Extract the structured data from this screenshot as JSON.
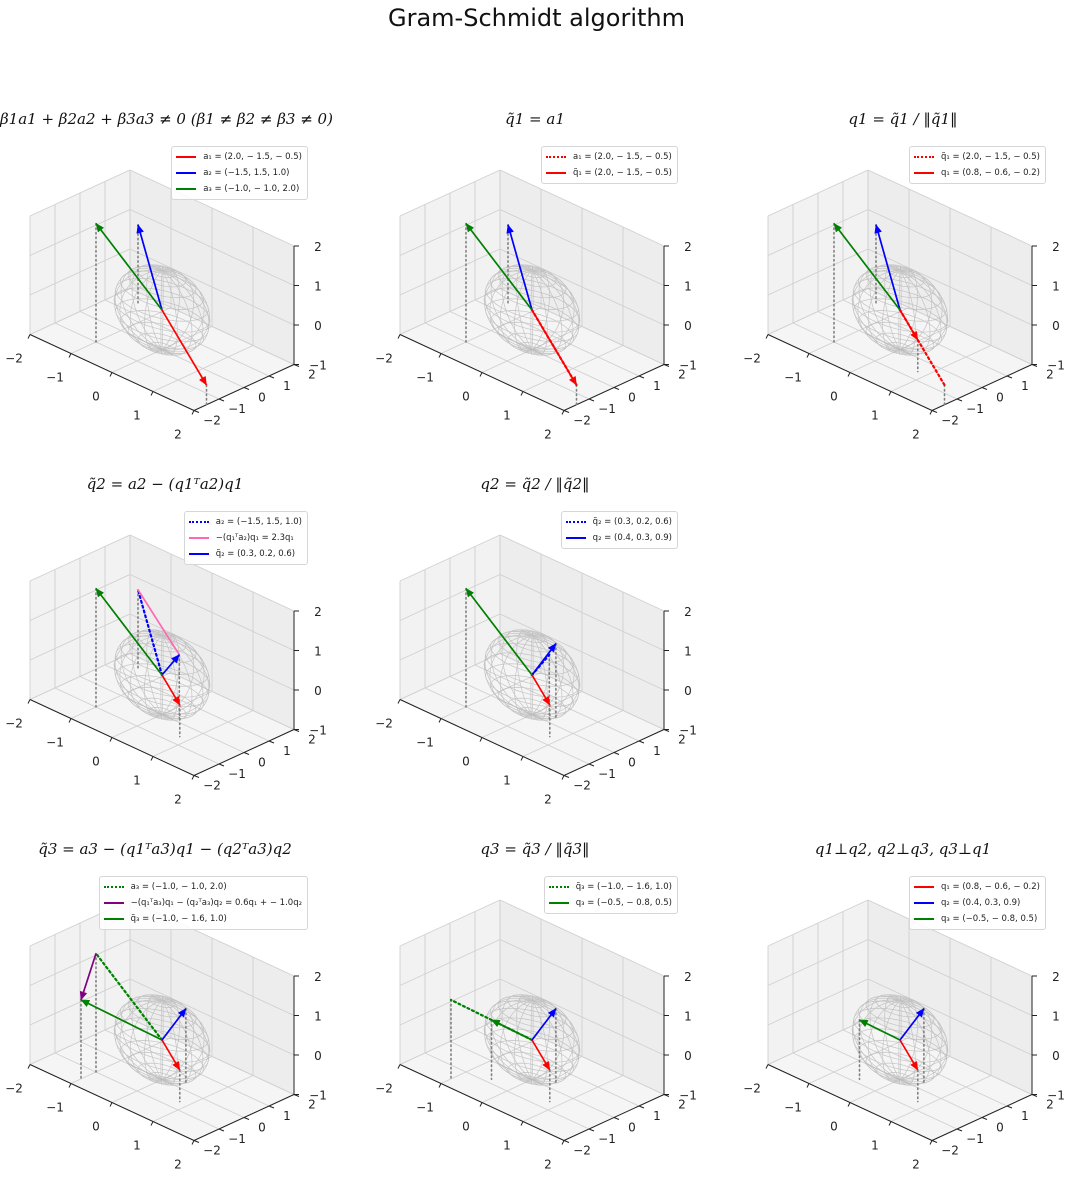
{
  "figure": {
    "title": "Gram-Schmidt algorithm"
  },
  "colors": {
    "red": "#ff0000",
    "blue": "#0000ff",
    "green": "#008000",
    "pink": "#ff69b4",
    "purple": "#800080",
    "gray": "#808080",
    "sphere": "#b0b0b0"
  },
  "chart_data": [
    {
      "type": "3d-vector",
      "title": "β1a1 + β2a2 + β3a3 ≠ 0 (β1 ≠ β2 ≠ β3 ≠ 0)",
      "xlim": [
        -2,
        2
      ],
      "ylim": [
        -2,
        2
      ],
      "zlim": [
        -1,
        2
      ],
      "xticks": [
        -2,
        -1,
        0,
        1,
        2
      ],
      "yticks": [
        -2,
        -1,
        0,
        1,
        2
      ],
      "zticks": [
        -1,
        0,
        1,
        2
      ],
      "legend_loc": "top-right",
      "vectors": [
        {
          "label": "a₁ = (2.0, − 1.5, − 0.5)",
          "from": [
            0,
            0,
            0
          ],
          "to": [
            2.0,
            -1.5,
            -0.5
          ],
          "color": "red",
          "style": "solid",
          "arrow": true
        },
        {
          "label": "a₂ = (−1.5, 1.5, 1.0)",
          "from": [
            0,
            0,
            0
          ],
          "to": [
            -1.5,
            1.5,
            1.0
          ],
          "color": "blue",
          "style": "solid",
          "arrow": true
        },
        {
          "label": "a₃ = (−1.0, − 1.0, 2.0)",
          "from": [
            0,
            0,
            0
          ],
          "to": [
            -1.0,
            -1.0,
            2.0
          ],
          "color": "green",
          "style": "solid",
          "arrow": true
        }
      ]
    },
    {
      "type": "3d-vector",
      "title": "q̃1 = a1",
      "xlim": [
        -2,
        2
      ],
      "ylim": [
        -2,
        2
      ],
      "zlim": [
        -1,
        2
      ],
      "xticks": [
        -2,
        -1,
        0,
        1,
        2
      ],
      "yticks": [
        -2,
        -1,
        0,
        1,
        2
      ],
      "zticks": [
        -1,
        0,
        1,
        2
      ],
      "legend_loc": "top-right",
      "vectors": [
        {
          "label": "a₁ = (2.0, − 1.5, − 0.5)",
          "from": [
            0,
            0,
            0
          ],
          "to": [
            2.0,
            -1.5,
            -0.5
          ],
          "color": "red",
          "style": "dotted",
          "arrow": false
        },
        {
          "label": "q̃₁ = (2.0, − 1.5, − 0.5)",
          "from": [
            0,
            0,
            0
          ],
          "to": [
            2.0,
            -1.5,
            -0.5
          ],
          "color": "red",
          "style": "solid",
          "arrow": true
        },
        {
          "label": null,
          "from": [
            0,
            0,
            0
          ],
          "to": [
            -1.5,
            1.5,
            1.0
          ],
          "color": "blue",
          "style": "solid",
          "arrow": true
        },
        {
          "label": null,
          "from": [
            0,
            0,
            0
          ],
          "to": [
            -1.0,
            -1.0,
            2.0
          ],
          "color": "green",
          "style": "solid",
          "arrow": true
        }
      ]
    },
    {
      "type": "3d-vector",
      "title": "q1 = q̃1 / ‖q̃1‖",
      "xlim": [
        -2,
        2
      ],
      "ylim": [
        -2,
        2
      ],
      "zlim": [
        -1,
        2
      ],
      "xticks": [
        -2,
        -1,
        0,
        1,
        2
      ],
      "yticks": [
        -2,
        -1,
        0,
        1,
        2
      ],
      "zticks": [
        -1,
        0,
        1,
        2
      ],
      "legend_loc": "top-right",
      "vectors": [
        {
          "label": "q̃₁ = (2.0, − 1.5, − 0.5)",
          "from": [
            0,
            0,
            0
          ],
          "to": [
            2.0,
            -1.5,
            -0.5
          ],
          "color": "red",
          "style": "dotted",
          "arrow": false
        },
        {
          "label": "q₁ = (0.8, − 0.6, − 0.2)",
          "from": [
            0,
            0,
            0
          ],
          "to": [
            0.8,
            -0.6,
            -0.2
          ],
          "color": "red",
          "style": "solid",
          "arrow": true
        },
        {
          "label": null,
          "from": [
            0,
            0,
            0
          ],
          "to": [
            -1.5,
            1.5,
            1.0
          ],
          "color": "blue",
          "style": "solid",
          "arrow": true
        },
        {
          "label": null,
          "from": [
            0,
            0,
            0
          ],
          "to": [
            -1.0,
            -1.0,
            2.0
          ],
          "color": "green",
          "style": "solid",
          "arrow": true
        }
      ]
    },
    {
      "type": "3d-vector",
      "title": "q̃2 = a2 − (q1ᵀa2)q1",
      "xlim": [
        -2,
        2
      ],
      "ylim": [
        -2,
        2
      ],
      "zlim": [
        -1,
        2
      ],
      "xticks": [
        -2,
        -1,
        0,
        1,
        2
      ],
      "yticks": [
        -2,
        -1,
        0,
        1,
        2
      ],
      "zticks": [
        -1,
        0,
        1,
        2
      ],
      "legend_loc": "top-right",
      "vectors": [
        {
          "label": "a₂ = (−1.5, 1.5, 1.0)",
          "from": [
            0,
            0,
            0
          ],
          "to": [
            -1.5,
            1.5,
            1.0
          ],
          "color": "blue",
          "style": "dotted",
          "arrow": false
        },
        {
          "label": "−(q₁ᵀa₂)q₁ = 2.3q₁",
          "from": [
            -1.5,
            1.5,
            1.0
          ],
          "to": [
            0.3,
            0.2,
            0.6
          ],
          "color": "pink",
          "style": "solid",
          "arrow": false
        },
        {
          "label": "q̃₂ = (0.3, 0.2, 0.6)",
          "from": [
            0,
            0,
            0
          ],
          "to": [
            0.3,
            0.2,
            0.6
          ],
          "color": "blue",
          "style": "solid",
          "arrow": true
        },
        {
          "label": null,
          "from": [
            0,
            0,
            0
          ],
          "to": [
            0.8,
            -0.6,
            -0.2
          ],
          "color": "red",
          "style": "solid",
          "arrow": true
        },
        {
          "label": null,
          "from": [
            0,
            0,
            0
          ],
          "to": [
            -1.0,
            -1.0,
            2.0
          ],
          "color": "green",
          "style": "solid",
          "arrow": true
        }
      ]
    },
    {
      "type": "3d-vector",
      "title": "q2 = q̃2 / ‖q̃2‖",
      "xlim": [
        -2,
        2
      ],
      "ylim": [
        -2,
        2
      ],
      "zlim": [
        -1,
        2
      ],
      "xticks": [
        -2,
        -1,
        0,
        1,
        2
      ],
      "yticks": [
        -2,
        -1,
        0,
        1,
        2
      ],
      "zticks": [
        -1,
        0,
        1,
        2
      ],
      "legend_loc": "top-right",
      "vectors": [
        {
          "label": "q̃₂ = (0.3, 0.2, 0.6)",
          "from": [
            0,
            0,
            0
          ],
          "to": [
            0.3,
            0.2,
            0.6
          ],
          "color": "blue",
          "style": "dotted",
          "arrow": false
        },
        {
          "label": "q₂ = (0.4, 0.3, 0.9)",
          "from": [
            0,
            0,
            0
          ],
          "to": [
            0.4,
            0.3,
            0.9
          ],
          "color": "blue",
          "style": "solid",
          "arrow": true
        },
        {
          "label": null,
          "from": [
            0,
            0,
            0
          ],
          "to": [
            0.8,
            -0.6,
            -0.2
          ],
          "color": "red",
          "style": "solid",
          "arrow": true
        },
        {
          "label": null,
          "from": [
            0,
            0,
            0
          ],
          "to": [
            -1.0,
            -1.0,
            2.0
          ],
          "color": "green",
          "style": "solid",
          "arrow": true
        }
      ]
    },
    null,
    {
      "type": "3d-vector",
      "title": "q̃3 = a3 − (q1ᵀa3)q1 − (q2ᵀa3)q2",
      "xlim": [
        -2,
        2
      ],
      "ylim": [
        -2,
        2
      ],
      "zlim": [
        -1,
        2
      ],
      "xticks": [
        -2,
        -1,
        0,
        1,
        2
      ],
      "yticks": [
        -2,
        -1,
        0,
        1,
        2
      ],
      "zticks": [
        -1,
        0,
        1,
        2
      ],
      "legend_loc": "top-right",
      "vectors": [
        {
          "label": "a₃ = (−1.0, − 1.0, 2.0)",
          "from": [
            0,
            0,
            0
          ],
          "to": [
            -1.0,
            -1.0,
            2.0
          ],
          "color": "green",
          "style": "dotted",
          "arrow": false
        },
        {
          "label": "−(q₁ᵀa₃)q₁ − (q₂ᵀa₃)q₂ = 0.6q₁ + − 1.0q₂",
          "from": [
            -1.0,
            -1.0,
            2.0
          ],
          "to": [
            -1.0,
            -1.6,
            1.0
          ],
          "color": "purple",
          "style": "solid",
          "arrow": true
        },
        {
          "label": "q̃₃ = (−1.0, − 1.6, 1.0)",
          "from": [
            0,
            0,
            0
          ],
          "to": [
            -1.0,
            -1.6,
            1.0
          ],
          "color": "green",
          "style": "solid",
          "arrow": true
        },
        {
          "label": null,
          "from": [
            0,
            0,
            0
          ],
          "to": [
            0.8,
            -0.6,
            -0.2
          ],
          "color": "red",
          "style": "solid",
          "arrow": true
        },
        {
          "label": null,
          "from": [
            0,
            0,
            0
          ],
          "to": [
            0.4,
            0.3,
            0.9
          ],
          "color": "blue",
          "style": "solid",
          "arrow": true
        }
      ]
    },
    {
      "type": "3d-vector",
      "title": "q3 = q̃3 / ‖q̃3‖",
      "xlim": [
        -2,
        2
      ],
      "ylim": [
        -2,
        2
      ],
      "zlim": [
        -1,
        2
      ],
      "xticks": [
        -2,
        -1,
        0,
        1,
        2
      ],
      "yticks": [
        -2,
        -1,
        0,
        1,
        2
      ],
      "zticks": [
        -1,
        0,
        1,
        2
      ],
      "legend_loc": "top-right",
      "vectors": [
        {
          "label": "q̃₃ = (−1.0, − 1.6, 1.0)",
          "from": [
            0,
            0,
            0
          ],
          "to": [
            -1.0,
            -1.6,
            1.0
          ],
          "color": "green",
          "style": "dotted",
          "arrow": false
        },
        {
          "label": "q₃ = (−0.5, − 0.8, 0.5)",
          "from": [
            0,
            0,
            0
          ],
          "to": [
            -0.5,
            -0.8,
            0.5
          ],
          "color": "green",
          "style": "solid",
          "arrow": true
        },
        {
          "label": null,
          "from": [
            0,
            0,
            0
          ],
          "to": [
            0.8,
            -0.6,
            -0.2
          ],
          "color": "red",
          "style": "solid",
          "arrow": true
        },
        {
          "label": null,
          "from": [
            0,
            0,
            0
          ],
          "to": [
            0.4,
            0.3,
            0.9
          ],
          "color": "blue",
          "style": "solid",
          "arrow": true
        }
      ]
    },
    {
      "type": "3d-vector",
      "title": "q1⊥q2, q2⊥q3, q3⊥q1",
      "xlim": [
        -2,
        2
      ],
      "ylim": [
        -2,
        2
      ],
      "zlim": [
        -1,
        2
      ],
      "xticks": [
        -2,
        -1,
        0,
        1,
        2
      ],
      "yticks": [
        -2,
        -1,
        0,
        1,
        2
      ],
      "zticks": [
        -1,
        0,
        1,
        2
      ],
      "legend_loc": "top-right",
      "vectors": [
        {
          "label": "q₁ = (0.8, − 0.6, − 0.2)",
          "from": [
            0,
            0,
            0
          ],
          "to": [
            0.8,
            -0.6,
            -0.2
          ],
          "color": "red",
          "style": "solid",
          "arrow": true
        },
        {
          "label": "q₂ = (0.4, 0.3, 0.9)",
          "from": [
            0,
            0,
            0
          ],
          "to": [
            0.4,
            0.3,
            0.9
          ],
          "color": "blue",
          "style": "solid",
          "arrow": true
        },
        {
          "label": "q₃ = (−0.5, − 0.8, 0.5)",
          "from": [
            0,
            0,
            0
          ],
          "to": [
            -0.5,
            -0.8,
            0.5
          ],
          "color": "green",
          "style": "solid",
          "arrow": true
        }
      ]
    }
  ]
}
